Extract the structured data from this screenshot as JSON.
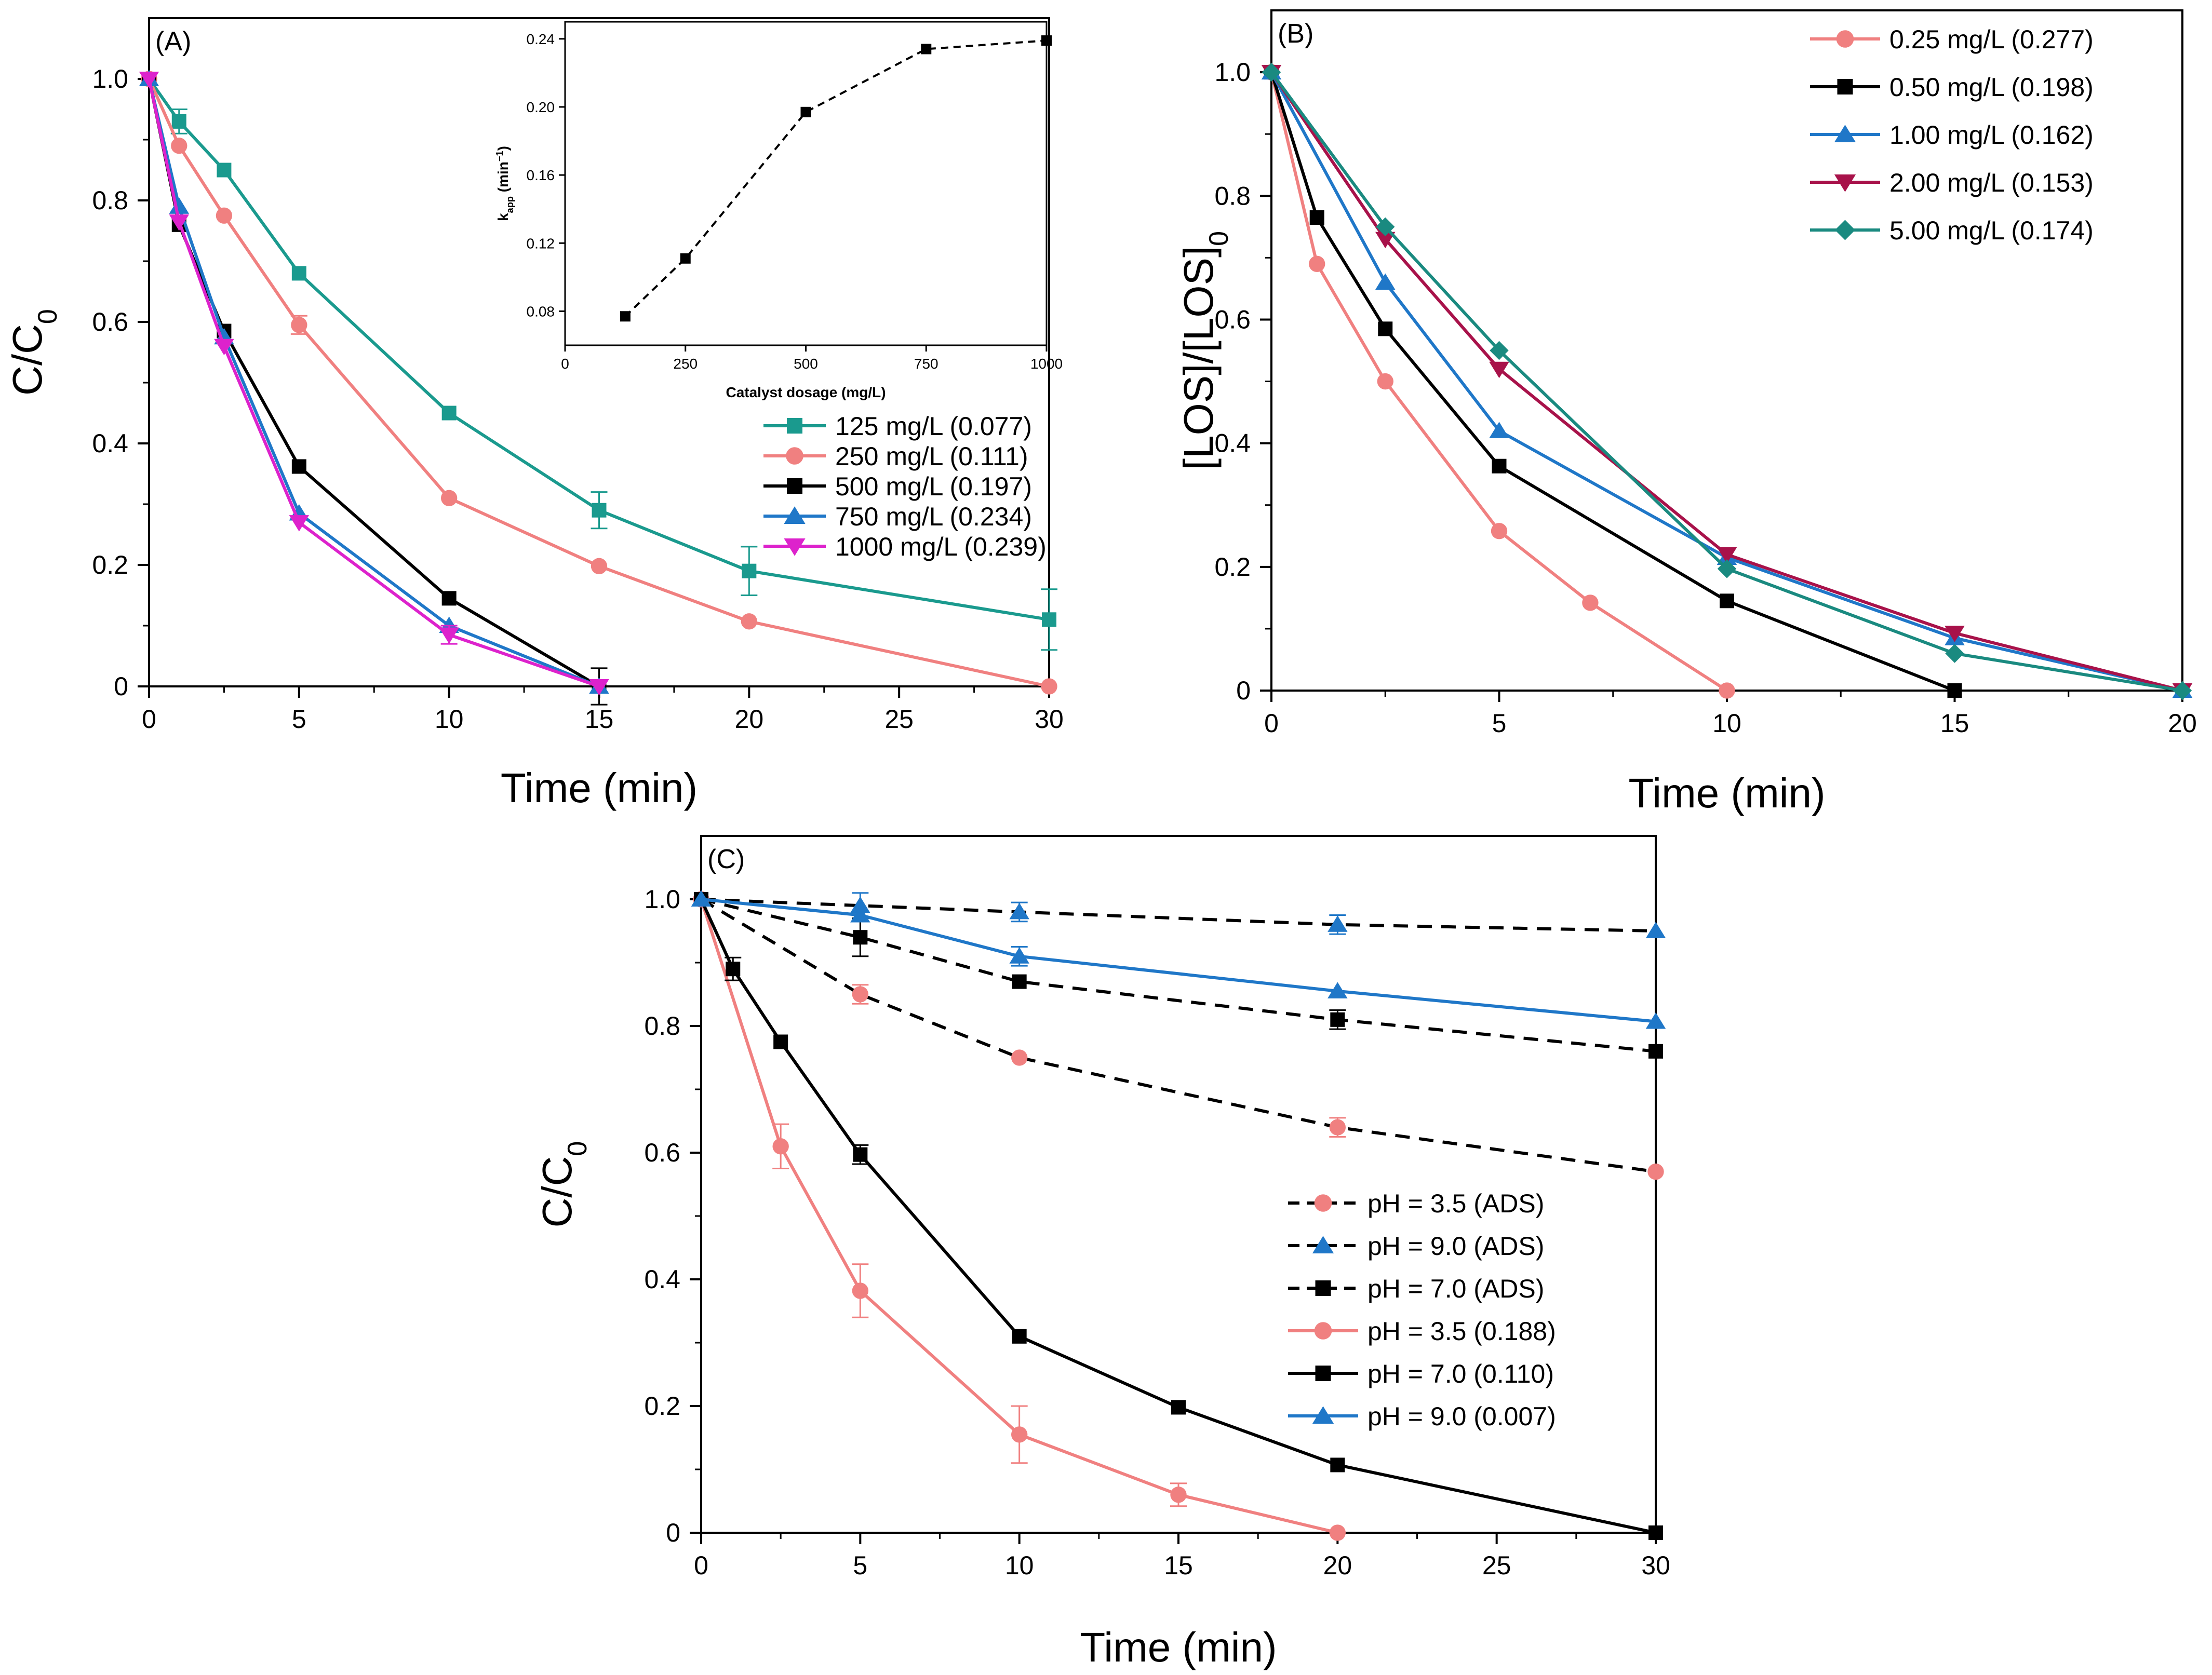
{
  "chart_data": [
    {
      "type": "line",
      "panel_label": "(A)",
      "xlabel": "Time (min)",
      "ylabel": "C/C",
      "ylabel_sub": "0",
      "xlim": [
        0,
        30
      ],
      "ylim": [
        0,
        1.1
      ],
      "xticks": [
        0,
        5,
        10,
        15,
        20,
        25,
        30
      ],
      "xtick_labels": [
        "0",
        "5",
        "10",
        "15",
        "20",
        "25",
        "30"
      ],
      "yticks": [
        0,
        0.2,
        0.4,
        0.6,
        0.8,
        1.0
      ],
      "ytick_labels": [
        "0",
        "0.2",
        "0.4",
        "0.6",
        "0.8",
        "1.0"
      ],
      "legend_position": "right-middle",
      "series": [
        {
          "name": "125 mg/L (0.077)",
          "color": "#1a9a8e",
          "marker": "square",
          "dash": "solid",
          "x": [
            0,
            1,
            2.5,
            5,
            10,
            15,
            20,
            30
          ],
          "y": [
            1.0,
            0.93,
            0.85,
            0.68,
            0.45,
            0.29,
            0.19,
            0.11
          ],
          "err": [
            0,
            0.02,
            0,
            0,
            0,
            0.03,
            0.04,
            0.05
          ]
        },
        {
          "name": "250 mg/L (0.111)",
          "color": "#f08080",
          "marker": "circle",
          "dash": "solid",
          "x": [
            0,
            1,
            2.5,
            5,
            10,
            15,
            20,
            30
          ],
          "y": [
            1.0,
            0.89,
            0.775,
            0.595,
            0.31,
            0.198,
            0.107,
            0.0
          ],
          "err": [
            0,
            0,
            0,
            0.015,
            0,
            0,
            0,
            0
          ]
        },
        {
          "name": "500 mg/L (0.197)",
          "color": "#000000",
          "marker": "square",
          "dash": "solid",
          "x": [
            0,
            1,
            2.5,
            5,
            10,
            15
          ],
          "y": [
            1.0,
            0.76,
            0.585,
            0.362,
            0.145,
            0.0
          ],
          "err": [
            0,
            0,
            0,
            0,
            0,
            0.03
          ]
        },
        {
          "name": "750 mg/L  (0.234)",
          "color": "#1f77c8",
          "marker": "triangle-up",
          "dash": "solid",
          "x": [
            0,
            1,
            2.5,
            5,
            10,
            15
          ],
          "y": [
            1.0,
            0.79,
            0.575,
            0.285,
            0.1,
            0.0
          ],
          "err": [
            0,
            0,
            0,
            0,
            0,
            0
          ]
        },
        {
          "name": "1000 mg/L (0.239)",
          "color": "#dd22cc",
          "marker": "triangle-down",
          "dash": "solid",
          "x": [
            0,
            1,
            2.5,
            5,
            10,
            15
          ],
          "y": [
            1.0,
            0.765,
            0.56,
            0.27,
            0.085,
            0.0
          ],
          "err": [
            0,
            0,
            0,
            0,
            0.015,
            0
          ]
        }
      ],
      "inset": {
        "xlabel": "Catalyst dosage (mg/L)",
        "ylabel_main": "k",
        "ylabel_sub": "app",
        "ylabel_unit": " (min",
        "ylabel_sup": "−1",
        "ylabel_close": ")",
        "xlim": [
          0,
          1000
        ],
        "ylim": [
          0.06,
          0.25
        ],
        "xticks": [
          0,
          250,
          500,
          750,
          1000
        ],
        "xtick_labels": [
          "0",
          "250",
          "500",
          "750",
          "1000"
        ],
        "yticks": [
          0.08,
          0.12,
          0.16,
          0.2,
          0.24
        ],
        "ytick_labels": [
          "0.08",
          "0.12",
          "0.16",
          "0.20",
          "0.24"
        ],
        "x": [
          125,
          250,
          500,
          750,
          1000
        ],
        "y": [
          0.077,
          0.111,
          0.197,
          0.234,
          0.239
        ]
      }
    },
    {
      "type": "line",
      "panel_label": "(B)",
      "xlabel": "Time (min)",
      "ylabel": "[LOS]/[LOS]",
      "ylabel_sub": "0",
      "xlim": [
        0,
        20
      ],
      "ylim": [
        0,
        1.1
      ],
      "xticks": [
        0,
        5,
        10,
        15,
        20
      ],
      "xtick_labels": [
        "0",
        "5",
        "10",
        "15",
        "20"
      ],
      "yticks": [
        0,
        0.2,
        0.4,
        0.6,
        0.8,
        1.0
      ],
      "ytick_labels": [
        "0",
        "0.2",
        "0.4",
        "0.6",
        "0.8",
        "1.0"
      ],
      "legend_position": "top-right",
      "series": [
        {
          "name": "0.25 mg/L (0.277)",
          "color": "#f08080",
          "marker": "circle",
          "dash": "solid",
          "x": [
            0,
            1,
            2.5,
            5,
            7,
            10
          ],
          "y": [
            1.0,
            0.69,
            0.5,
            0.258,
            0.142,
            0.0
          ]
        },
        {
          "name": "0.50 mg/L (0.198)",
          "color": "#000000",
          "marker": "square",
          "dash": "solid",
          "x": [
            0,
            1,
            2.5,
            5,
            10,
            15
          ],
          "y": [
            1.0,
            0.765,
            0.585,
            0.363,
            0.145,
            0.0
          ]
        },
        {
          "name": "1.00 mg/L (0.162)",
          "color": "#1f77c8",
          "marker": "triangle-up",
          "dash": "solid",
          "x": [
            0,
            2.5,
            5,
            10,
            15,
            20
          ],
          "y": [
            1.0,
            0.66,
            0.42,
            0.215,
            0.085,
            0.0
          ]
        },
        {
          "name": "2.00 mg/L (0.153)",
          "color": "#a8124a",
          "marker": "triangle-down",
          "dash": "solid",
          "x": [
            0,
            2.5,
            5,
            10,
            15,
            20
          ],
          "y": [
            1.0,
            0.73,
            0.52,
            0.22,
            0.093,
            0.0
          ]
        },
        {
          "name": "5.00 mg/L (0.174)",
          "color": "#1a8a80",
          "marker": "diamond",
          "dash": "solid",
          "x": [
            0,
            2.5,
            5,
            10,
            15,
            20
          ],
          "y": [
            1.0,
            0.75,
            0.55,
            0.197,
            0.06,
            0.0
          ]
        }
      ]
    },
    {
      "type": "line",
      "panel_label": "(C)",
      "xlabel": "Time (min)",
      "ylabel": "C/C",
      "ylabel_sub": "0",
      "xlim": [
        0,
        30
      ],
      "ylim": [
        0,
        1.1
      ],
      "xticks": [
        0,
        5,
        10,
        15,
        20,
        25,
        30
      ],
      "xtick_labels": [
        "0",
        "5",
        "10",
        "15",
        "20",
        "25",
        "30"
      ],
      "yticks": [
        0,
        0.2,
        0.4,
        0.6,
        0.8,
        1.0
      ],
      "ytick_labels": [
        "0",
        "0.2",
        "0.4",
        "0.6",
        "0.8",
        "1.0"
      ],
      "legend_position": "right-lower",
      "series": [
        {
          "name": "pH = 3.5 (ADS)",
          "color": "#f08080",
          "line_color": "#000000",
          "marker": "circle",
          "dash": "dashed",
          "x": [
            0,
            5,
            10,
            20,
            30
          ],
          "y": [
            1.0,
            0.85,
            0.75,
            0.64,
            0.57
          ],
          "err": [
            0,
            0.015,
            0,
            0.015,
            0
          ]
        },
        {
          "name": "pH = 9.0 (ADS)",
          "color": "#1f77c8",
          "line_color": "#000000",
          "marker": "triangle-up",
          "dash": "dashed",
          "x": [
            0,
            5,
            10,
            20,
            30
          ],
          "y": [
            1.0,
            0.99,
            0.98,
            0.96,
            0.95
          ],
          "err": [
            0,
            0.02,
            0.015,
            0.015,
            0
          ]
        },
        {
          "name": "pH = 7.0 (ADS)",
          "color": "#000000",
          "line_color": "#000000",
          "marker": "square",
          "dash": "dashed",
          "x": [
            0,
            5,
            10,
            20,
            30
          ],
          "y": [
            1.0,
            0.94,
            0.87,
            0.81,
            0.76
          ],
          "err": [
            0,
            0.03,
            0,
            0.015,
            0
          ]
        },
        {
          "name": "pH = 3.5 (0.188)",
          "color": "#f08080",
          "line_color": "#f08080",
          "marker": "circle",
          "dash": "solid",
          "x": [
            0,
            2.5,
            5,
            10,
            15,
            20
          ],
          "y": [
            1.0,
            0.61,
            0.382,
            0.155,
            0.06,
            0.0
          ],
          "err": [
            0,
            0.035,
            0.042,
            0.045,
            0.018,
            0
          ]
        },
        {
          "name": "pH = 7.0 (0.110)",
          "color": "#000000",
          "line_color": "#000000",
          "marker": "square",
          "dash": "solid",
          "x": [
            0,
            1,
            2.5,
            5,
            10,
            15,
            20,
            30
          ],
          "y": [
            1.0,
            0.89,
            0.775,
            0.597,
            0.31,
            0.198,
            0.107,
            0.0
          ],
          "err": [
            0,
            0.018,
            0,
            0.015,
            0,
            0,
            0,
            0
          ]
        },
        {
          "name": "pH = 9.0 (0.007)",
          "color": "#1f77c8",
          "line_color": "#1f77c8",
          "marker": "triangle-up",
          "dash": "solid",
          "x": [
            0,
            5,
            10,
            20,
            30
          ],
          "y": [
            1.0,
            0.975,
            0.91,
            0.855,
            0.807
          ],
          "err": [
            0,
            0,
            0.015,
            0,
            0
          ]
        }
      ]
    }
  ]
}
